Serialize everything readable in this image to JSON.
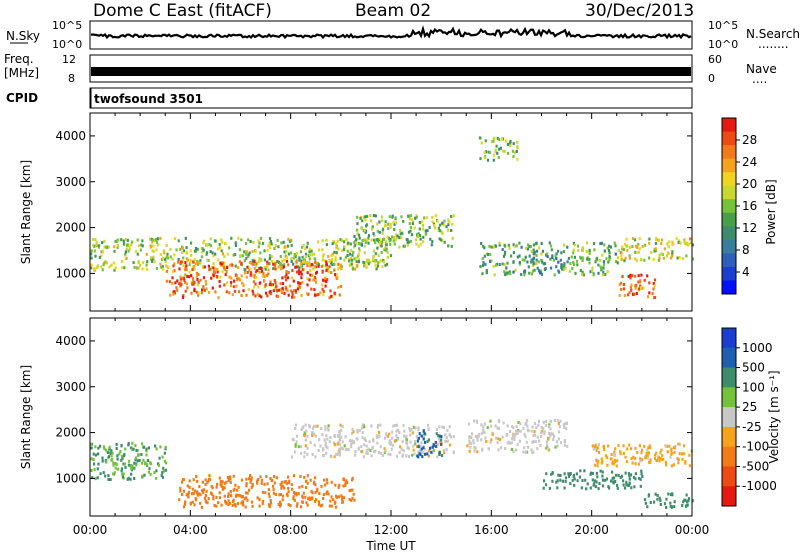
{
  "header": {
    "station": "Dome C East (fitACF)",
    "beam": "Beam 02",
    "date": "30/Dec/2013"
  },
  "noise_panel": {
    "left_label": "N.Sky",
    "left_ticks": [
      "10^5",
      "10^0"
    ],
    "right_ticks": [
      "10^5",
      "10^0"
    ],
    "right_label": "N.Search",
    "right_dots": "........"
  },
  "freq_panel": {
    "left_label_line1": "Freq.",
    "left_label_line2": "[MHz]",
    "left_ticks": [
      "12",
      "8"
    ],
    "right_ticks": [
      "60",
      "0"
    ],
    "right_label": "Nave",
    "right_dots": "...."
  },
  "cpid_panel": {
    "label": "CPID",
    "value": "twofsound 3501"
  },
  "power_panel": {
    "ylabel": "Slant Range [km]",
    "colorbar_label": "Power [dB]",
    "colorbar_ticks": [
      "28",
      "24",
      "20",
      "16",
      "12",
      "8",
      "4"
    ]
  },
  "velocity_panel": {
    "ylabel": "Slant Range [km]",
    "colorbar_label": "Velocity [m s⁻¹]",
    "colorbar_ticks": [
      "1000",
      "500",
      "100",
      "25",
      "-25",
      "-100",
      "-500",
      "-1000"
    ]
  },
  "x_axis": {
    "label": "Time UT",
    "ticks": [
      "00:00",
      "04:00",
      "08:00",
      "12:00",
      "16:00",
      "20:00",
      "00:00"
    ]
  },
  "chart_data": [
    {
      "type": "heatmap",
      "title": "Beam 02",
      "xlabel": "Time UT",
      "ylabel": "Slant Range [km]",
      "xlim": [
        0,
        24
      ],
      "ylim": [
        180,
        4500
      ],
      "yticks": [
        1000,
        2000,
        3000,
        4000
      ],
      "colorbar": {
        "label": "Power [dB]",
        "range": [
          0,
          30
        ],
        "ticks": [
          4,
          8,
          12,
          16,
          20,
          24,
          28
        ]
      },
      "regions": [
        {
          "t0": 0.0,
          "t1": 12.0,
          "r0": 1100,
          "r1": 1800,
          "value": 16
        },
        {
          "t0": 3.0,
          "t1": 10.0,
          "r0": 500,
          "r1": 1300,
          "value": 26
        },
        {
          "t0": 10.5,
          "t1": 14.5,
          "r0": 1600,
          "r1": 2300,
          "value": 14
        },
        {
          "t0": 15.5,
          "t1": 21.0,
          "r0": 1000,
          "r1": 1700,
          "value": 12
        },
        {
          "t0": 21.0,
          "t1": 24.0,
          "r0": 1300,
          "r1": 1800,
          "value": 18
        },
        {
          "t0": 21.0,
          "t1": 22.5,
          "r0": 500,
          "r1": 1000,
          "value": 26
        },
        {
          "t0": 15.5,
          "t1": 17.0,
          "r0": 3500,
          "r1": 4000,
          "value": 14
        }
      ]
    },
    {
      "type": "heatmap",
      "xlabel": "Time UT",
      "ylabel": "Slant Range [km]",
      "xlim": [
        0,
        24
      ],
      "ylim": [
        180,
        4500
      ],
      "yticks": [
        1000,
        2000,
        3000,
        4000
      ],
      "colorbar": {
        "label": "Velocity [m s⁻¹]",
        "range": [
          -1000,
          1000
        ],
        "ticks": [
          -1000,
          -500,
          -100,
          -25,
          25,
          100,
          500,
          1000
        ]
      },
      "regions": [
        {
          "t0": 0.0,
          "t1": 3.0,
          "r0": 1000,
          "r1": 1800,
          "value": 100
        },
        {
          "t0": 3.5,
          "t1": 10.5,
          "r0": 400,
          "r1": 1100,
          "value": -200
        },
        {
          "t0": 8.0,
          "t1": 14.5,
          "r0": 1500,
          "r1": 2200,
          "value": 0
        },
        {
          "t0": 13.0,
          "t1": 14.0,
          "r0": 1500,
          "r1": 2100,
          "value": 700
        },
        {
          "t0": 15.0,
          "t1": 19.0,
          "r0": 1600,
          "r1": 2300,
          "value": 0
        },
        {
          "t0": 18.0,
          "t1": 22.0,
          "r0": 800,
          "r1": 1200,
          "value": 200
        },
        {
          "t0": 22.0,
          "t1": 24.0,
          "r0": 400,
          "r1": 700,
          "value": 200
        },
        {
          "t0": 20.0,
          "t1": 24.0,
          "r0": 1300,
          "r1": 1800,
          "value": -50
        }
      ]
    }
  ],
  "colors": {
    "power_scale": [
      "#0010ff",
      "#1a3fd0",
      "#2d60b8",
      "#3a7d9a",
      "#3e8c6e",
      "#47a046",
      "#72c23a",
      "#c8d82c",
      "#f0d420",
      "#f5a31c",
      "#f27a17",
      "#ee4a14",
      "#e51a10"
    ],
    "velocity_scale": [
      "#e51a10",
      "#ee4a14",
      "#f27a17",
      "#f5a31c",
      "#c8c8c8",
      "#72c23a",
      "#3e8c6e",
      "#1f5fb0",
      "#1a3fd0"
    ]
  }
}
